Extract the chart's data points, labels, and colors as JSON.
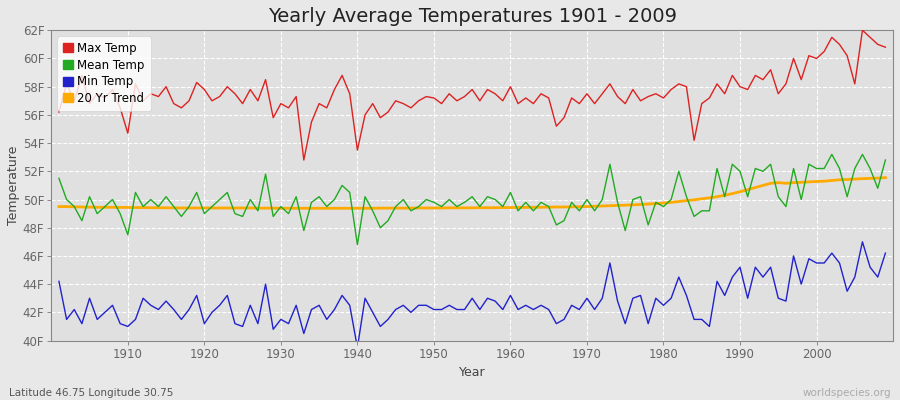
{
  "title": "Yearly Average Temperatures 1901 - 2009",
  "xlabel": "Year",
  "ylabel": "Temperature",
  "subtitle_left": "Latitude 46.75 Longitude 30.75",
  "subtitle_right": "worldspecies.org",
  "years": [
    1901,
    1902,
    1903,
    1904,
    1905,
    1906,
    1907,
    1908,
    1909,
    1910,
    1911,
    1912,
    1913,
    1914,
    1915,
    1916,
    1917,
    1918,
    1919,
    1920,
    1921,
    1922,
    1923,
    1924,
    1925,
    1926,
    1927,
    1928,
    1929,
    1930,
    1931,
    1932,
    1933,
    1934,
    1935,
    1936,
    1937,
    1938,
    1939,
    1940,
    1941,
    1942,
    1943,
    1944,
    1945,
    1946,
    1947,
    1948,
    1949,
    1950,
    1951,
    1952,
    1953,
    1954,
    1955,
    1956,
    1957,
    1958,
    1959,
    1960,
    1961,
    1962,
    1963,
    1964,
    1965,
    1966,
    1967,
    1968,
    1969,
    1970,
    1971,
    1972,
    1973,
    1974,
    1975,
    1976,
    1977,
    1978,
    1979,
    1980,
    1981,
    1982,
    1983,
    1984,
    1985,
    1986,
    1987,
    1988,
    1989,
    1990,
    1991,
    1992,
    1993,
    1994,
    1995,
    1996,
    1997,
    1998,
    1999,
    2000,
    2001,
    2002,
    2003,
    2004,
    2005,
    2006,
    2007,
    2008,
    2009
  ],
  "max_temp": [
    56.2,
    58.2,
    57.0,
    58.8,
    56.8,
    57.5,
    57.2,
    57.8,
    56.5,
    54.7,
    58.2,
    57.0,
    57.5,
    57.3,
    58.0,
    56.8,
    56.5,
    57.0,
    58.3,
    57.8,
    57.0,
    57.3,
    58.0,
    57.5,
    56.8,
    57.8,
    57.0,
    58.5,
    55.8,
    56.8,
    56.5,
    57.3,
    52.8,
    55.5,
    56.8,
    56.5,
    57.8,
    58.8,
    57.5,
    53.5,
    56.0,
    56.8,
    55.8,
    56.2,
    57.0,
    56.8,
    56.5,
    57.0,
    57.3,
    57.2,
    56.8,
    57.5,
    57.0,
    57.3,
    57.8,
    57.0,
    57.8,
    57.5,
    57.0,
    58.0,
    56.8,
    57.2,
    56.8,
    57.5,
    57.2,
    55.2,
    55.8,
    57.2,
    56.8,
    57.5,
    56.8,
    57.5,
    58.2,
    57.3,
    56.8,
    57.8,
    57.0,
    57.3,
    57.5,
    57.2,
    57.8,
    58.2,
    58.0,
    54.2,
    56.8,
    57.2,
    58.2,
    57.5,
    58.8,
    58.0,
    57.8,
    58.8,
    58.5,
    59.2,
    57.5,
    58.2,
    60.0,
    58.5,
    60.2,
    60.0,
    60.5,
    61.5,
    61.0,
    60.2,
    58.2,
    62.0,
    61.5,
    61.0,
    60.8
  ],
  "mean_temp": [
    51.5,
    50.0,
    49.5,
    48.5,
    50.2,
    49.0,
    49.5,
    50.0,
    49.0,
    47.5,
    50.5,
    49.5,
    50.0,
    49.5,
    50.2,
    49.5,
    48.8,
    49.5,
    50.5,
    49.0,
    49.5,
    50.0,
    50.5,
    49.0,
    48.8,
    50.0,
    49.2,
    51.8,
    48.8,
    49.5,
    49.0,
    50.2,
    47.8,
    49.8,
    50.2,
    49.5,
    50.0,
    51.0,
    50.5,
    46.8,
    50.2,
    49.2,
    48.0,
    48.5,
    49.5,
    50.0,
    49.2,
    49.5,
    50.0,
    49.8,
    49.5,
    50.0,
    49.5,
    49.8,
    50.2,
    49.5,
    50.2,
    50.0,
    49.5,
    50.5,
    49.2,
    49.8,
    49.2,
    49.8,
    49.5,
    48.2,
    48.5,
    49.8,
    49.2,
    50.0,
    49.2,
    50.0,
    52.5,
    49.8,
    47.8,
    50.0,
    50.2,
    48.2,
    49.8,
    49.5,
    50.0,
    52.0,
    50.2,
    48.8,
    49.2,
    49.2,
    52.2,
    50.2,
    52.5,
    52.0,
    50.2,
    52.2,
    52.0,
    52.5,
    50.2,
    49.5,
    52.2,
    50.0,
    52.5,
    52.2,
    52.2,
    53.2,
    52.2,
    50.2,
    52.2,
    53.2,
    52.2,
    50.8,
    52.8
  ],
  "min_temp": [
    44.2,
    41.5,
    42.2,
    41.2,
    43.0,
    41.5,
    42.0,
    42.5,
    41.2,
    41.0,
    41.5,
    43.0,
    42.5,
    42.2,
    42.8,
    42.2,
    41.5,
    42.2,
    43.2,
    41.2,
    42.0,
    42.5,
    43.2,
    41.2,
    41.0,
    42.5,
    41.2,
    44.0,
    40.8,
    41.5,
    41.2,
    42.5,
    40.5,
    42.2,
    42.5,
    41.5,
    42.2,
    43.2,
    42.5,
    39.5,
    43.0,
    42.0,
    41.0,
    41.5,
    42.2,
    42.5,
    42.0,
    42.5,
    42.5,
    42.2,
    42.2,
    42.5,
    42.2,
    42.2,
    43.0,
    42.2,
    43.0,
    42.8,
    42.2,
    43.2,
    42.2,
    42.5,
    42.2,
    42.5,
    42.2,
    41.2,
    41.5,
    42.5,
    42.2,
    43.0,
    42.2,
    43.0,
    45.5,
    42.8,
    41.2,
    43.0,
    43.2,
    41.2,
    43.0,
    42.5,
    43.0,
    44.5,
    43.2,
    41.5,
    41.5,
    41.0,
    44.2,
    43.2,
    44.5,
    45.2,
    43.0,
    45.2,
    44.5,
    45.2,
    43.0,
    42.8,
    46.0,
    44.0,
    45.8,
    45.5,
    45.5,
    46.2,
    45.5,
    43.5,
    44.5,
    47.0,
    45.2,
    44.5,
    46.2
  ],
  "trend_values": [
    49.5,
    49.5,
    49.48,
    49.47,
    49.46,
    49.45,
    49.45,
    49.45,
    49.44,
    49.44,
    49.43,
    49.43,
    49.42,
    49.42,
    49.41,
    49.41,
    49.4,
    49.4,
    49.4,
    49.4,
    49.4,
    49.4,
    49.4,
    49.4,
    49.4,
    49.4,
    49.39,
    49.39,
    49.39,
    49.38,
    49.38,
    49.38,
    49.38,
    49.38,
    49.38,
    49.38,
    49.38,
    49.38,
    49.38,
    49.38,
    49.38,
    49.38,
    49.39,
    49.39,
    49.39,
    49.39,
    49.39,
    49.4,
    49.4,
    49.4,
    49.4,
    49.41,
    49.41,
    49.41,
    49.41,
    49.42,
    49.42,
    49.42,
    49.43,
    49.43,
    49.44,
    49.44,
    49.45,
    49.45,
    49.46,
    49.47,
    49.47,
    49.48,
    49.49,
    49.5,
    49.52,
    49.54,
    49.56,
    49.58,
    49.6,
    49.62,
    49.65,
    49.68,
    49.71,
    49.75,
    49.8,
    49.86,
    49.92,
    49.98,
    50.05,
    50.12,
    50.2,
    50.3,
    50.42,
    50.55,
    50.7,
    50.85,
    51.0,
    51.15,
    51.2,
    51.15,
    51.2,
    51.22,
    51.25,
    51.28,
    51.3,
    51.35,
    51.4,
    51.42,
    51.45,
    51.48,
    51.5,
    51.52,
    51.55
  ],
  "ylim": [
    40,
    62
  ],
  "yticks": [
    40,
    42,
    44,
    46,
    48,
    50,
    52,
    54,
    56,
    58,
    60,
    62
  ],
  "ytick_labels": [
    "40F",
    "42F",
    "44F",
    "46F",
    "48F",
    "50F",
    "52F",
    "54F",
    "56F",
    "58F",
    "60F",
    "62F"
  ],
  "xlim_left": 1900,
  "xlim_right": 2010,
  "xticks": [
    1910,
    1920,
    1930,
    1940,
    1950,
    1960,
    1970,
    1980,
    1990,
    2000
  ],
  "bg_color": "#e8e8e8",
  "plot_bg_color": "#e0e0e0",
  "grid_color": "#ffffff",
  "max_color": "#dd2222",
  "mean_color": "#22aa22",
  "min_color": "#2222cc",
  "trend_color": "#ffaa00",
  "title_fontsize": 14,
  "axis_label_fontsize": 9,
  "tick_fontsize": 8.5,
  "legend_fontsize": 8.5
}
